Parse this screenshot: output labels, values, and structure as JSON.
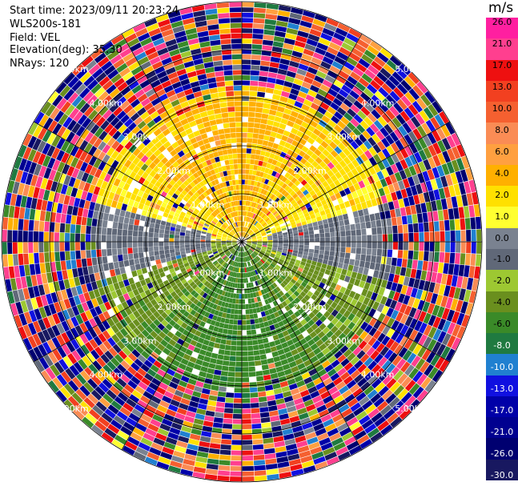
{
  "header": {
    "start_time": "Start time: 2023/09/11 20:23:24",
    "instrument": "WLS200s-181",
    "field": "Field: VEL",
    "elevation": "Elevation(deg): 35.30",
    "nrays": "NRays: 120"
  },
  "colorbar": {
    "unit": "m/s",
    "ticks": [
      "26.0",
      "21.0",
      "17.0",
      "13.0",
      "10.0",
      "8.0",
      "6.0",
      "4.0",
      "2.0",
      "1.0",
      "0.0",
      "-1.0",
      "-2.0",
      "-4.0",
      "-6.0",
      "-8.0",
      "-10.0",
      "-13.0",
      "-17.0",
      "-21.0",
      "-26.0",
      "-30.0"
    ],
    "colors": [
      "#ff1fa0",
      "#ff3f8f",
      "#ee1010",
      "#f24020",
      "#f56030",
      "#fa8c55",
      "#ffa040",
      "#ffb000",
      "#ffe000",
      "#ffff30",
      "#7a8290",
      "#606878",
      "#9dc832",
      "#6a8f1e",
      "#3a8a28",
      "#1f7a40",
      "#2080d0",
      "#1010e0",
      "#0000a8",
      "#000090",
      "#000070",
      "#181860"
    ]
  },
  "chart_data": {
    "type": "heatmap",
    "title": "",
    "field": "VEL",
    "unit": "m/s",
    "nrays": 120,
    "elevation_deg": 35.3,
    "range_rings_km": [
      1.0,
      2.0,
      3.0,
      4.0,
      5.0
    ],
    "ring_labels": [
      "1.00km",
      "2.00km",
      "3.00km",
      "4.00km",
      "5.00km"
    ],
    "velocity_limits": [
      -30.0,
      26.0
    ],
    "pattern": "positive velocities (yellow/orange 2 to 6 m/s) in the northern half within ~3 km, gray near-zero bands on east and west, negative velocities (green -2 to -6 m/s) in the southern half, noisy random colors beyond ~3 km range"
  }
}
